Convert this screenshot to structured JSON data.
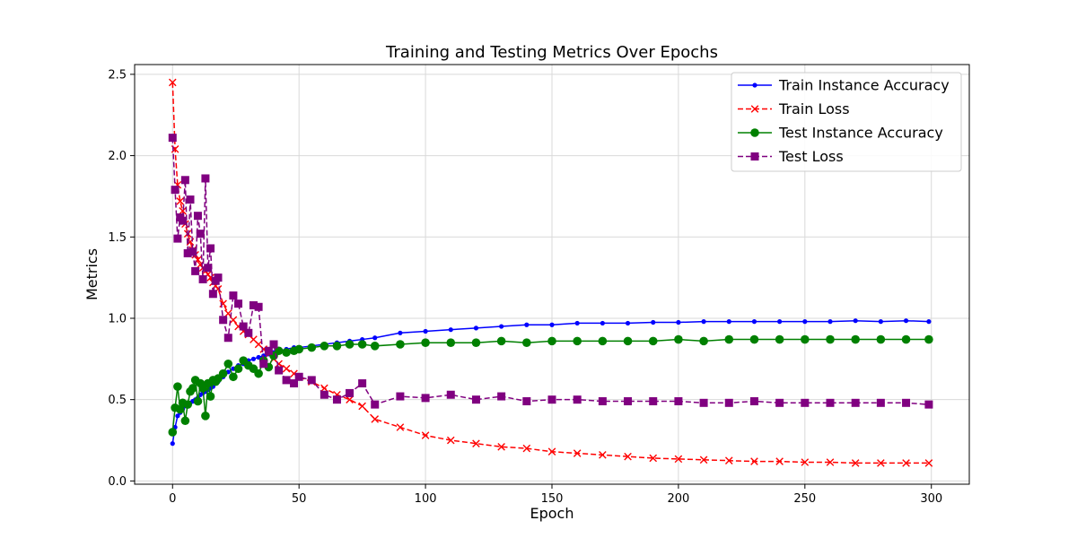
{
  "chart_data": {
    "type": "line",
    "title": "Training and Testing Metrics Over Epochs",
    "xlabel": "Epoch",
    "ylabel": "Metrics",
    "xlim": [
      -15,
      315
    ],
    "ylim": [
      -0.02,
      2.56
    ],
    "xticks": [
      0,
      50,
      100,
      150,
      200,
      250,
      300
    ],
    "yticks": [
      0.0,
      0.5,
      1.0,
      1.5,
      2.0,
      2.5
    ],
    "grid": true,
    "legend_position": "top-right",
    "series": [
      {
        "name": "Train Instance Accuracy",
        "color": "#0000ff",
        "line": "solid",
        "marker": "dot",
        "x": [
          0,
          1,
          2,
          3,
          4,
          5,
          6,
          7,
          8,
          9,
          10,
          11,
          12,
          13,
          14,
          15,
          16,
          17,
          18,
          20,
          22,
          24,
          26,
          28,
          30,
          32,
          34,
          36,
          38,
          40,
          42,
          45,
          48,
          50,
          55,
          60,
          65,
          70,
          75,
          80,
          90,
          100,
          110,
          120,
          130,
          140,
          150,
          160,
          170,
          180,
          190,
          200,
          210,
          220,
          230,
          240,
          250,
          260,
          270,
          280,
          290,
          299
        ],
        "y": [
          0.23,
          0.33,
          0.4,
          0.42,
          0.44,
          0.46,
          0.47,
          0.48,
          0.49,
          0.5,
          0.51,
          0.53,
          0.54,
          0.55,
          0.56,
          0.57,
          0.58,
          0.6,
          0.61,
          0.64,
          0.67,
          0.69,
          0.71,
          0.72,
          0.74,
          0.75,
          0.76,
          0.77,
          0.78,
          0.79,
          0.8,
          0.81,
          0.82,
          0.82,
          0.83,
          0.84,
          0.85,
          0.86,
          0.87,
          0.88,
          0.91,
          0.92,
          0.93,
          0.94,
          0.95,
          0.96,
          0.96,
          0.97,
          0.97,
          0.97,
          0.975,
          0.975,
          0.98,
          0.98,
          0.98,
          0.98,
          0.98,
          0.98,
          0.985,
          0.98,
          0.985,
          0.98
        ]
      },
      {
        "name": "Train Loss",
        "color": "#ff0000",
        "line": "dashed",
        "marker": "x",
        "x": [
          0,
          1,
          2,
          3,
          4,
          5,
          6,
          7,
          8,
          9,
          10,
          11,
          12,
          13,
          14,
          15,
          16,
          17,
          18,
          20,
          22,
          24,
          26,
          28,
          30,
          32,
          34,
          36,
          38,
          40,
          42,
          45,
          48,
          50,
          55,
          60,
          65,
          70,
          75,
          80,
          90,
          100,
          110,
          120,
          130,
          140,
          150,
          160,
          170,
          180,
          190,
          200,
          210,
          220,
          230,
          240,
          250,
          260,
          270,
          280,
          290,
          299
        ],
        "y": [
          2.45,
          2.04,
          1.82,
          1.72,
          1.66,
          1.58,
          1.52,
          1.47,
          1.42,
          1.39,
          1.36,
          1.33,
          1.31,
          1.29,
          1.27,
          1.25,
          1.22,
          1.2,
          1.18,
          1.09,
          1.03,
          0.99,
          0.95,
          0.92,
          0.9,
          0.87,
          0.84,
          0.81,
          0.78,
          0.75,
          0.72,
          0.69,
          0.66,
          0.64,
          0.61,
          0.57,
          0.53,
          0.5,
          0.46,
          0.38,
          0.33,
          0.28,
          0.25,
          0.23,
          0.21,
          0.2,
          0.18,
          0.17,
          0.16,
          0.15,
          0.14,
          0.135,
          0.13,
          0.125,
          0.12,
          0.12,
          0.115,
          0.115,
          0.11,
          0.11,
          0.11,
          0.11
        ]
      },
      {
        "name": "Test Instance Accuracy",
        "color": "#008000",
        "line": "solid",
        "marker": "circle",
        "x": [
          0,
          1,
          2,
          3,
          4,
          5,
          6,
          7,
          8,
          9,
          10,
          11,
          12,
          13,
          14,
          15,
          16,
          17,
          18,
          20,
          22,
          24,
          26,
          28,
          30,
          32,
          34,
          36,
          38,
          40,
          42,
          45,
          48,
          50,
          55,
          60,
          65,
          70,
          75,
          80,
          90,
          100,
          110,
          120,
          130,
          140,
          150,
          160,
          170,
          180,
          190,
          200,
          210,
          220,
          230,
          240,
          250,
          260,
          270,
          280,
          290,
          299
        ],
        "y": [
          0.3,
          0.45,
          0.58,
          0.44,
          0.48,
          0.37,
          0.47,
          0.55,
          0.57,
          0.62,
          0.49,
          0.6,
          0.57,
          0.4,
          0.6,
          0.52,
          0.62,
          0.61,
          0.63,
          0.66,
          0.72,
          0.64,
          0.69,
          0.74,
          0.71,
          0.69,
          0.66,
          0.74,
          0.7,
          0.77,
          0.8,
          0.79,
          0.8,
          0.81,
          0.82,
          0.83,
          0.83,
          0.84,
          0.84,
          0.83,
          0.84,
          0.85,
          0.85,
          0.85,
          0.86,
          0.85,
          0.86,
          0.86,
          0.86,
          0.86,
          0.86,
          0.87,
          0.86,
          0.87,
          0.87,
          0.87,
          0.87,
          0.87,
          0.87,
          0.87,
          0.87,
          0.87
        ]
      },
      {
        "name": "Test Loss",
        "color": "#800080",
        "line": "dashed",
        "marker": "square",
        "x": [
          0,
          1,
          2,
          3,
          4,
          5,
          6,
          7,
          8,
          9,
          10,
          11,
          12,
          13,
          14,
          15,
          16,
          17,
          18,
          20,
          22,
          24,
          26,
          28,
          30,
          32,
          34,
          36,
          38,
          40,
          42,
          45,
          48,
          50,
          55,
          60,
          65,
          70,
          75,
          80,
          90,
          100,
          110,
          120,
          130,
          140,
          150,
          160,
          170,
          180,
          190,
          200,
          210,
          220,
          230,
          240,
          250,
          260,
          270,
          280,
          290,
          299
        ],
        "y": [
          2.11,
          1.79,
          1.49,
          1.62,
          1.6,
          1.85,
          1.4,
          1.73,
          1.41,
          1.29,
          1.63,
          1.52,
          1.24,
          1.86,
          1.31,
          1.43,
          1.15,
          1.23,
          1.25,
          0.99,
          0.88,
          1.14,
          1.09,
          0.95,
          0.91,
          1.08,
          1.07,
          0.72,
          0.8,
          0.84,
          0.68,
          0.62,
          0.6,
          0.64,
          0.62,
          0.53,
          0.5,
          0.54,
          0.6,
          0.47,
          0.52,
          0.51,
          0.53,
          0.5,
          0.52,
          0.49,
          0.5,
          0.5,
          0.49,
          0.49,
          0.49,
          0.49,
          0.48,
          0.48,
          0.49,
          0.48,
          0.48,
          0.48,
          0.48,
          0.48,
          0.48,
          0.47
        ]
      }
    ]
  }
}
